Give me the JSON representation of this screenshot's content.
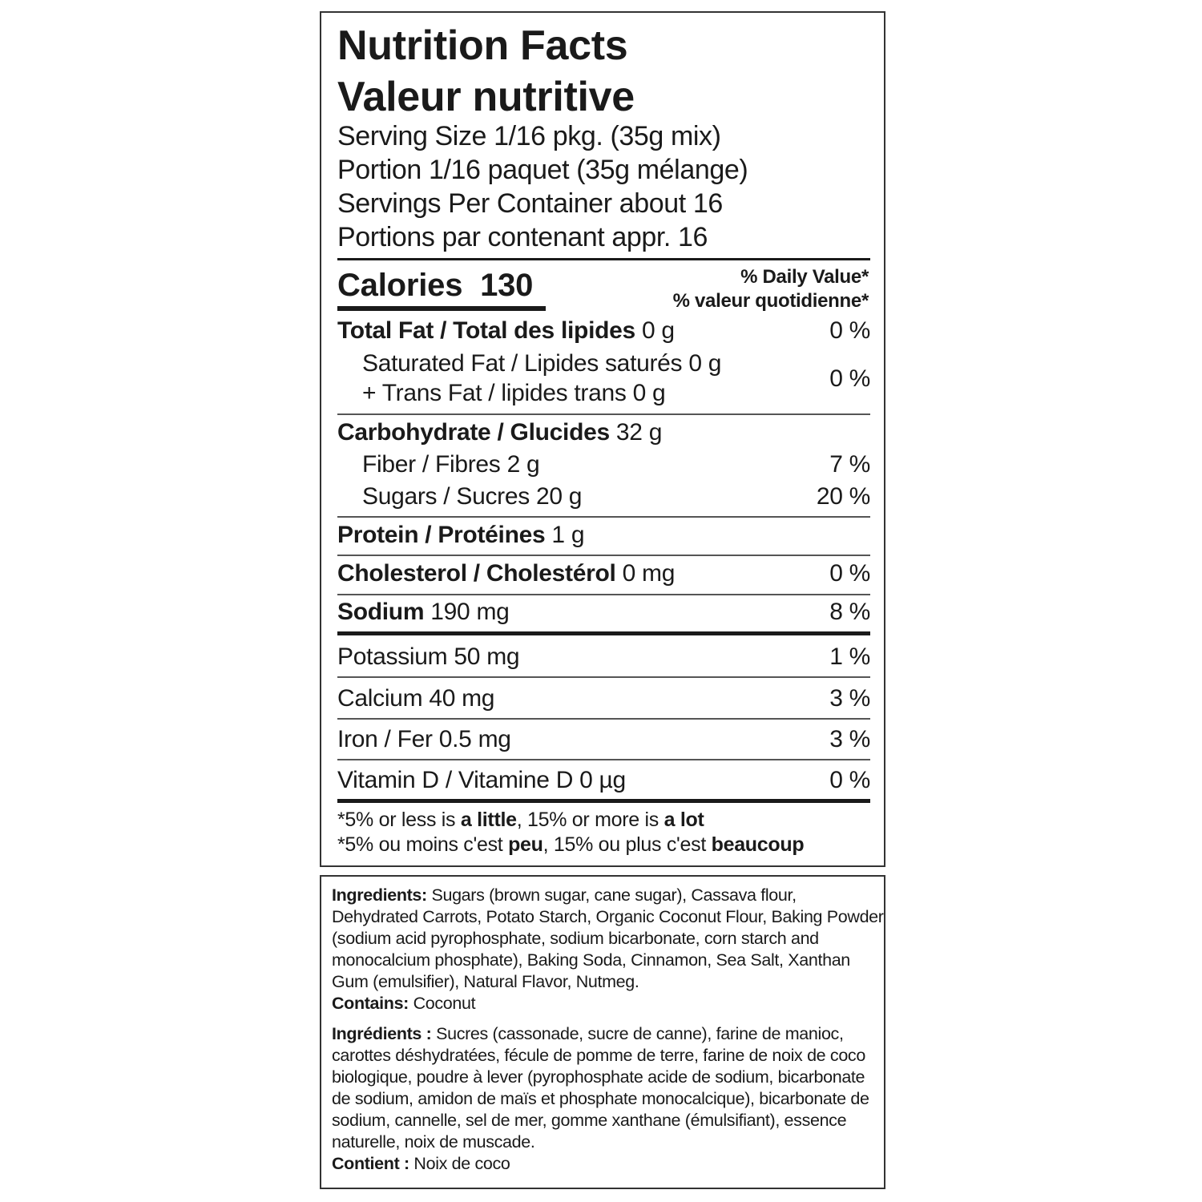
{
  "label": {
    "title_en": "Nutrition Facts",
    "title_fr": "Valeur nutritive",
    "serving_size_en": "Serving Size 1/16 pkg. (35g mix)",
    "serving_size_fr": "Portion 1/16 paquet (35g mélange)",
    "servings_en": "Servings Per Container about 16",
    "servings_fr": "Portions par contenant appr. 16",
    "calories_label": "Calories",
    "calories_value": "130",
    "dv_en": "% Daily Value*",
    "dv_fr": "% valeur quotidienne*",
    "nutrients": [
      {
        "label": "Total Fat / Total des lipides",
        "amount": "0 g",
        "dv": "0 %"
      },
      {
        "label": "Saturated Fat / Lipides saturés",
        "amount": "0 g",
        "dv": "0 %"
      },
      {
        "label": "+ Trans Fat / lipides trans",
        "amount": "0 g"
      },
      {
        "label": "Carbohydrate / Glucides",
        "amount": "32 g"
      },
      {
        "label": "Fiber / Fibres",
        "amount": "2 g",
        "dv": "7 %"
      },
      {
        "label": "Sugars / Sucres",
        "amount": "20 g",
        "dv": "20 %"
      },
      {
        "label": "Protein / Protéines",
        "amount": "1 g"
      },
      {
        "label": "Cholesterol / Cholestérol",
        "amount": "0 mg",
        "dv": "0 %"
      },
      {
        "label": "Sodium",
        "amount": "190 mg",
        "dv": "8 %"
      },
      {
        "label": "Potassium",
        "amount": "50 mg",
        "dv": "1 %"
      },
      {
        "label": "Calcium",
        "amount": "40 mg",
        "dv": "3 %"
      },
      {
        "label": "Iron / Fer",
        "amount": "0.5 mg",
        "dv": "3 %"
      },
      {
        "label": "Vitamin D / Vitamine D",
        "amount": "0 µg",
        "dv": "0 %"
      }
    ],
    "footnote_en": {
      "a": "*5% or less is ",
      "b": "a little",
      "c": ", 15% or more is ",
      "d": "a lot"
    },
    "footnote_fr": {
      "a": "*5% ou moins c'est ",
      "b": "peu",
      "c": ", 15% ou plus c'est ",
      "d": "beaucoup"
    }
  },
  "ingredients": {
    "en_label": "Ingredients:",
    "en_text": " Sugars (brown sugar, cane sugar), Cassava flour, Dehydrated Carrots, Potato Starch, Organic Coconut Flour, Baking Powder (sodium acid pyrophosphate, sodium bicarbonate, corn starch and monocalcium phosphate), Baking Soda, Cinnamon, Sea Salt, Xanthan Gum (emulsifier), Natural Flavor, Nutmeg.",
    "en_contains_label": "Contains:",
    "en_contains": " Coconut",
    "fr_label": "Ingrédients :",
    "fr_text": " Sucres (cassonade, sucre de canne), farine de manioc, carottes déshydratées, fécule de pomme de terre, farine de noix de coco biologique, poudre à lever (pyrophosphate acide de sodium, bicarbonate de sodium, amidon de maïs et phosphate monocalcique), bicarbonate de sodium, cannelle, sel de mer, gomme xanthane (émulsifiant), essence naturelle, noix de muscade.",
    "fr_contains_label": "Contient :",
    "fr_contains": " Noix de coco"
  }
}
